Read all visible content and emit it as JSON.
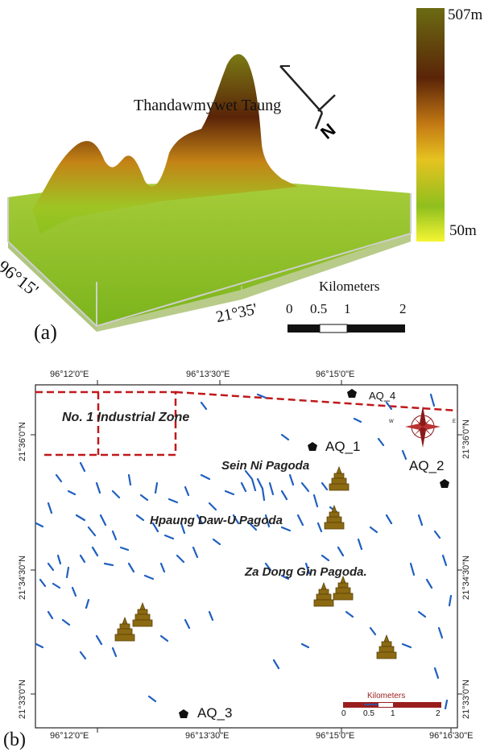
{
  "panel_a": {
    "label": "(a)",
    "peak_name": "Thandawmywet Taung",
    "axis_lon": "96°15'",
    "axis_lat": "21°35'",
    "legend": {
      "max": "507m",
      "min": "50m",
      "colors": [
        "#6b6b12",
        "#5a2408",
        "#c47a14",
        "#e6c320",
        "#8fbf1e",
        "#f5f532"
      ]
    },
    "scale": {
      "title": "Kilometers",
      "ticks": [
        "0",
        "0.5",
        "1",
        "2"
      ]
    }
  },
  "panel_b": {
    "label": "(b)",
    "top_lon_ticks": [
      "96°12'0\"E",
      "96°13'30\"E",
      "96°15'0\"E"
    ],
    "bottom_lon_ticks": [
      "96°12'0\"E",
      "96°13'30\"E",
      "96°15'0\"E",
      "96°16'30\"E"
    ],
    "left_lat_ticks": [
      "21°36'0\"N",
      "21°34'30\"N",
      "21°33'0\"N"
    ],
    "right_lat_ticks": [
      "21°36'0\"N",
      "21°34'30\"N",
      "21°33'0\"N"
    ],
    "zone_label": "No. 1 Industrial Zone",
    "pagodas": [
      "Sein Ni Pagoda",
      "Hpaung Daw-U Pagoda",
      "Za Dong Gin Pagoda."
    ],
    "stations": [
      "AQ_1",
      "AQ_2",
      "AQ_3",
      "AQ_4"
    ],
    "compass_letters": [
      "W",
      "E"
    ],
    "scale": {
      "title": "Kilometers",
      "ticks": [
        "0",
        "0.5",
        "1",
        "2"
      ]
    },
    "colors": {
      "stream": "#1f5fbf",
      "zone": "#c0181a",
      "pagoda": "#8b6a12"
    }
  }
}
